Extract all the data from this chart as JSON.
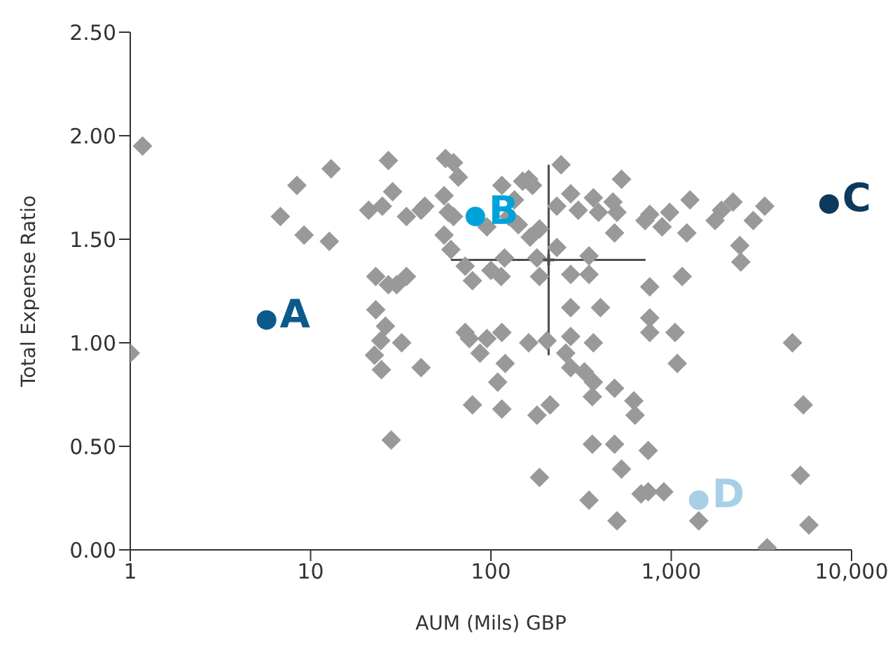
{
  "chart_data": {
    "type": "scatter",
    "xlabel": "AUM (Mils) GBP",
    "ylabel": "Total Expense Ratio",
    "log": "x",
    "xlim": [
      1,
      10000
    ],
    "xticks": [
      1,
      10,
      100,
      {
        "value": 1000,
        "label": "1,000"
      },
      {
        "value": 10000,
        "label": "10,000"
      }
    ],
    "ylim": [
      0,
      2.5
    ],
    "yticks": [
      {
        "value": 0,
        "label": "0.00"
      },
      {
        "value": 0.5,
        "label": "0.50"
      },
      {
        "value": 1,
        "label": "1.00"
      },
      {
        "value": 1.5,
        "label": "1.50"
      },
      {
        "value": 2,
        "label": "2.00"
      },
      {
        "value": 2.5,
        "label": "2.50"
      }
    ],
    "grid": false,
    "legend": false,
    "marker": "diamond",
    "series": [
      {
        "color": "#999999",
        "x": [
          1.17,
          1.0,
          8.4,
          13,
          6.8,
          9.2,
          12.7,
          21,
          25,
          27,
          23,
          27,
          23,
          26,
          24.5,
          22.6,
          24.7,
          28,
          56,
          62,
          66,
          28.5,
          34,
          43,
          41,
          55,
          58,
          62,
          55,
          84,
          95,
          115,
          150,
          162,
          170,
          245,
          135,
          126,
          142,
          165,
          186,
          232,
          277,
          305,
          370,
          395,
          475,
          530,
          500,
          485,
          760,
          715,
          60,
          72,
          79,
          100,
          119,
          114,
          180,
          186,
          232,
          277,
          350,
          350,
          277,
          405,
          760,
          760,
          760,
          30,
          34,
          32,
          41,
          72,
          76,
          95,
          115,
          87,
          120,
          109,
          162,
          205,
          277,
          370,
          260,
          277,
          330,
          370,
          365,
          485,
          620,
          630,
          79,
          115,
          180,
          213,
          365,
          485,
          530,
          745,
          186,
          350,
          500,
          680,
          745,
          1270,
          980,
          890,
          1220,
          1900,
          2200,
          1750,
          3300,
          2850,
          2400,
          2430,
          1150,
          1050,
          1080,
          4700,
          5400,
          5200,
          5800,
          3400,
          1420,
          910
        ],
        "values": [
          1.95,
          0.95,
          1.76,
          1.84,
          1.61,
          1.52,
          1.49,
          1.64,
          1.66,
          1.88,
          1.32,
          1.28,
          1.16,
          1.08,
          1.01,
          0.94,
          0.87,
          0.53,
          1.89,
          1.87,
          1.8,
          1.73,
          1.61,
          1.66,
          1.64,
          1.71,
          1.63,
          1.61,
          1.52,
          null,
          1.56,
          1.76,
          1.78,
          1.79,
          1.76,
          1.86,
          1.69,
          1.61,
          1.57,
          1.51,
          1.55,
          1.66,
          1.72,
          1.64,
          1.7,
          1.63,
          1.68,
          1.79,
          1.63,
          1.53,
          1.62,
          1.59,
          1.45,
          1.37,
          1.3,
          1.35,
          1.41,
          1.32,
          1.41,
          1.32,
          1.46,
          1.33,
          1.33,
          1.42,
          1.17,
          1.17,
          1.27,
          1.12,
          1.05,
          1.28,
          1.32,
          1.0,
          0.88,
          1.05,
          1.02,
          1.02,
          1.05,
          0.95,
          0.9,
          0.81,
          1.0,
          1.01,
          1.03,
          1.0,
          0.95,
          0.88,
          0.86,
          0.81,
          0.74,
          0.78,
          0.72,
          0.65,
          0.7,
          0.68,
          0.65,
          0.7,
          0.51,
          0.51,
          0.39,
          0.48,
          0.35,
          0.24,
          0.14,
          0.27,
          0.28,
          1.69,
          1.63,
          1.56,
          1.53,
          1.64,
          1.68,
          1.59,
          1.66,
          1.59,
          1.47,
          1.39,
          1.32,
          1.05,
          0.9,
          1.0,
          0.7,
          0.36,
          0.12,
          0.01,
          0.14,
          0.28
        ]
      },
      {
        "color": "#4d4d4d",
        "marker": "cross",
        "x": [
          209
        ],
        "values": [
          1.4
        ],
        "errors": [
          [
            0.94,
            1.86
          ]
        ],
        "xerrors": [
          [
            60,
            720
          ]
        ]
      },
      {
        "name": "A",
        "color": "#0b5a8e",
        "marker": "circle",
        "x": [
          5.7
        ],
        "values": [
          1.11
        ]
      },
      {
        "name": "B",
        "color": "#00a3d9",
        "marker": "circle",
        "x": [
          82
        ],
        "values": [
          1.61
        ]
      },
      {
        "name": "C",
        "color": "#0b3a5c",
        "marker": "circle",
        "x": [
          7500
        ],
        "values": [
          1.67
        ]
      },
      {
        "name": "D",
        "color": "#a7cfe6",
        "marker": "circle",
        "x": [
          1420
        ],
        "values": [
          0.24
        ]
      }
    ]
  }
}
